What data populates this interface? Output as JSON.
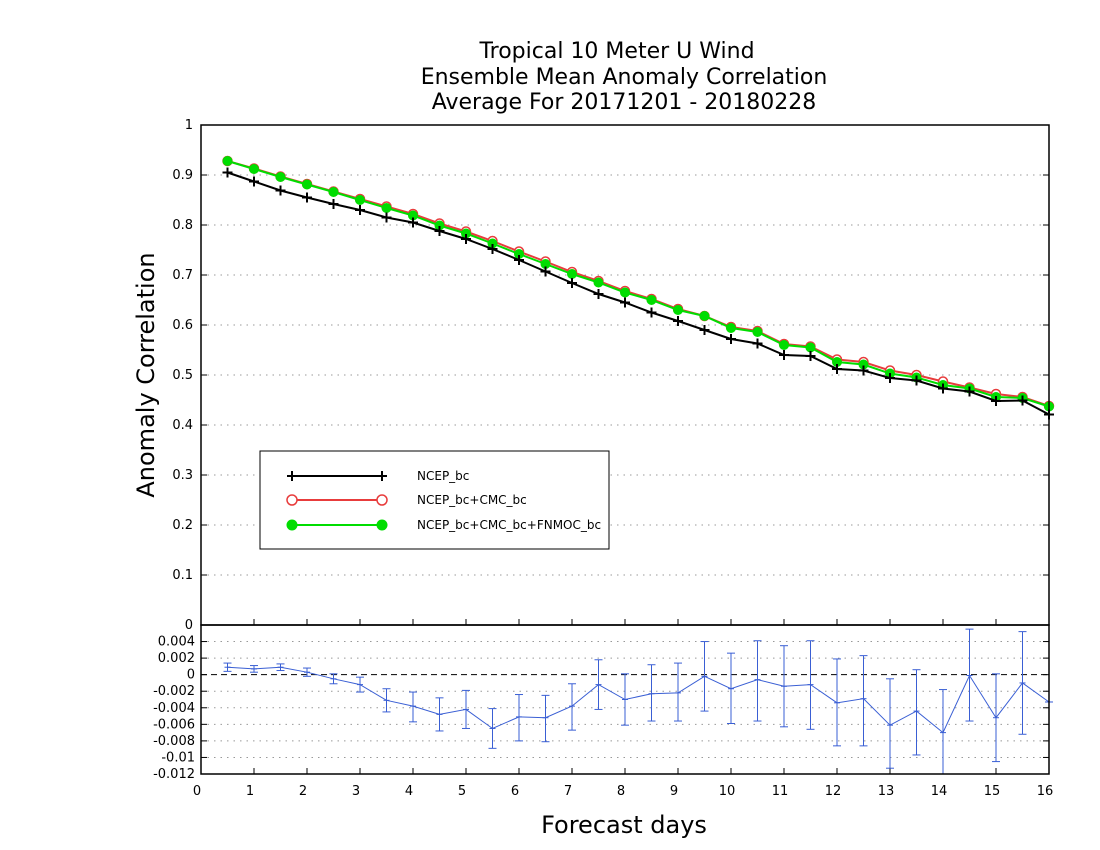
{
  "colors": {
    "ncep": "#000000",
    "ncep_cmc": "#e83c3c",
    "ncep_cmc_fnmoc": "#00dd00",
    "diff": "#3a5fd4"
  },
  "chart_data": [
    {
      "type": "line",
      "title": [
        "Tropical 10 Meter U Wind",
        "Ensemble Mean Anomaly Correlation",
        "Average For 20171201 - 20180228"
      ],
      "ylabel": "Anomaly Correlation",
      "xlim": [
        0,
        16
      ],
      "ylim": [
        0,
        1
      ],
      "yticks": [
        "0",
        "0.1",
        "0.2",
        "0.3",
        "0.4",
        "0.5",
        "0.6",
        "0.7",
        "0.8",
        "0.9",
        "1"
      ],
      "grid": true,
      "legend_position": "left",
      "x": [
        0.5,
        1,
        1.5,
        2,
        2.5,
        3,
        3.5,
        4,
        4.5,
        5,
        5.5,
        6,
        6.5,
        7,
        7.5,
        8,
        8.5,
        9,
        9.5,
        10,
        10.5,
        11,
        11.5,
        12,
        12.5,
        13,
        13.5,
        14,
        14.5,
        15,
        15.5,
        16
      ],
      "series": [
        {
          "name": "NCEP_bc",
          "marker": "plus",
          "values": [
            0.905,
            0.887,
            0.869,
            0.855,
            0.842,
            0.83,
            0.815,
            0.805,
            0.788,
            0.772,
            0.752,
            0.73,
            0.707,
            0.684,
            0.662,
            0.645,
            0.625,
            0.608,
            0.59,
            0.572,
            0.563,
            0.54,
            0.538,
            0.512,
            0.509,
            0.494,
            0.489,
            0.473,
            0.467,
            0.448,
            0.449,
            0.421
          ]
        },
        {
          "name": "NCEP_bc+CMC_bc",
          "marker": "open-circle",
          "values": [
            0.928,
            0.913,
            0.897,
            0.882,
            0.867,
            0.852,
            0.837,
            0.822,
            0.803,
            0.787,
            0.768,
            0.747,
            0.727,
            0.706,
            0.688,
            0.668,
            0.652,
            0.632,
            0.618,
            0.596,
            0.588,
            0.562,
            0.557,
            0.531,
            0.526,
            0.509,
            0.5,
            0.487,
            0.475,
            0.462,
            0.456,
            0.438
          ]
        },
        {
          "name": "NCEP_bc+CMC_bc+FNMOC_bc",
          "marker": "filled-circle",
          "values": [
            0.928,
            0.912,
            0.896,
            0.881,
            0.866,
            0.85,
            0.834,
            0.819,
            0.799,
            0.783,
            0.763,
            0.742,
            0.722,
            0.702,
            0.685,
            0.665,
            0.65,
            0.63,
            0.618,
            0.594,
            0.586,
            0.56,
            0.555,
            0.526,
            0.521,
            0.503,
            0.495,
            0.48,
            0.473,
            0.456,
            0.454,
            0.437
          ]
        }
      ]
    },
    {
      "type": "line",
      "xlabel": "Forecast days",
      "xlim": [
        0,
        16
      ],
      "ylim": [
        -0.012,
        0.006
      ],
      "xticks": [
        "0",
        "1",
        "2",
        "3",
        "4",
        "5",
        "6",
        "7",
        "8",
        "9",
        "10",
        "11",
        "12",
        "13",
        "14",
        "15",
        "16"
      ],
      "yticks": [
        "-0.012",
        "-0.01",
        "-0.008",
        "-0.006",
        "-0.004",
        "-0.002",
        "0",
        "0.002",
        "0.004"
      ],
      "ytick_values": [
        -0.012,
        -0.01,
        -0.008,
        -0.006,
        -0.004,
        -0.002,
        0,
        0.002,
        0.004
      ],
      "zero_line": true,
      "x": [
        0.5,
        1,
        1.5,
        2,
        2.5,
        3,
        3.5,
        4,
        4.5,
        5,
        5.5,
        6,
        6.5,
        7,
        7.5,
        8,
        8.5,
        9,
        9.5,
        10,
        10.5,
        11,
        11.5,
        12,
        12.5,
        13,
        13.5,
        14,
        14.5,
        15,
        15.5,
        16
      ],
      "values": [
        0.0009,
        0.0007,
        0.0009,
        0.0003,
        -0.0005,
        -0.0012,
        -0.0031,
        -0.0038,
        -0.0048,
        -0.0042,
        -0.0065,
        -0.0051,
        -0.0052,
        -0.0038,
        -0.0012,
        -0.003,
        -0.0023,
        -0.0022,
        -0.0002,
        -0.0017,
        -0.0006,
        -0.0014,
        -0.0012,
        -0.0034,
        -0.0029,
        -0.0061,
        -0.0044,
        -0.007,
        -0.0001,
        -0.0052,
        -0.001,
        -0.0033
      ],
      "error_low": [
        0.0004,
        0.0003,
        0.0005,
        -0.0002,
        -0.0011,
        -0.0021,
        -0.0045,
        -0.0057,
        -0.0068,
        -0.0065,
        -0.0089,
        -0.008,
        -0.0081,
        -0.0067,
        -0.0042,
        -0.0061,
        -0.0056,
        -0.0056,
        -0.0044,
        -0.0059,
        -0.0056,
        -0.0063,
        -0.0066,
        -0.0086,
        -0.0086,
        -0.0113,
        -0.0097,
        -0.0122,
        -0.0056,
        -0.0105,
        -0.0072,
        -0.0033
      ],
      "error_high": [
        0.0014,
        0.0011,
        0.0013,
        0.0008,
        0.0001,
        -0.0003,
        -0.0017,
        -0.0021,
        -0.0028,
        -0.0019,
        -0.0041,
        -0.0024,
        -0.0025,
        -0.0011,
        0.0018,
        0.0001,
        0.0012,
        0.0014,
        0.004,
        0.0026,
        0.0041,
        0.0035,
        0.0041,
        0.0019,
        0.0023,
        -0.0005,
        0.0006,
        -0.0018,
        0.0055,
        0.0001,
        0.0052,
        -0.0033
      ]
    }
  ]
}
